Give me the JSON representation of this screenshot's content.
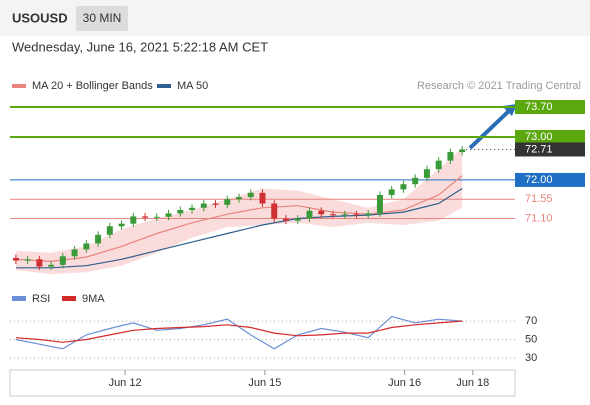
{
  "header": {
    "symbol": "USOUSD",
    "interval": "30 MIN",
    "timestamp": "Wednesday, June 16, 2021 5:22:18 AM CET"
  },
  "chart_data": [
    {
      "type": "candlestick",
      "source": "Research © 2021 Trading Central",
      "up_color": "#3a9a3a",
      "down_color": "#d03030",
      "x": [
        0,
        1,
        2,
        3,
        4,
        5,
        6,
        7,
        8,
        9,
        10,
        11,
        12,
        13,
        14,
        15,
        16,
        17,
        18,
        19,
        20,
        21,
        22,
        23,
        24,
        25,
        26,
        27,
        28,
        29,
        30,
        31,
        32,
        33,
        34,
        35,
        36,
        37,
        38
      ],
      "open": [
        70.18,
        70.12,
        70.15,
        69.98,
        70.02,
        70.22,
        70.38,
        70.52,
        70.72,
        70.92,
        70.98,
        71.15,
        71.12,
        71.14,
        71.22,
        71.3,
        71.35,
        71.45,
        71.42,
        71.55,
        71.6,
        71.7,
        71.45,
        71.1,
        71.05,
        71.1,
        71.28,
        71.2,
        71.18,
        71.2,
        71.18,
        71.22,
        71.65,
        71.78,
        71.9,
        72.05,
        72.25,
        72.45,
        72.65
      ],
      "high": [
        70.26,
        70.23,
        70.23,
        70.1,
        70.3,
        70.46,
        70.6,
        70.8,
        71.0,
        71.06,
        71.23,
        71.23,
        71.22,
        71.3,
        71.38,
        71.43,
        71.53,
        71.53,
        71.63,
        71.68,
        71.78,
        71.78,
        71.53,
        71.18,
        71.18,
        71.36,
        71.36,
        71.28,
        71.28,
        71.28,
        71.3,
        71.73,
        71.86,
        71.98,
        72.13,
        72.33,
        72.53,
        72.73,
        72.79
      ],
      "low": [
        70.04,
        70.04,
        69.9,
        69.9,
        69.94,
        70.14,
        70.3,
        70.44,
        70.64,
        70.84,
        70.9,
        71.04,
        71.04,
        71.06,
        71.14,
        71.22,
        71.27,
        71.34,
        71.34,
        71.47,
        71.52,
        71.37,
        71.02,
        70.97,
        70.97,
        71.02,
        71.12,
        71.1,
        71.1,
        71.1,
        71.1,
        71.14,
        71.57,
        71.7,
        71.82,
        71.97,
        72.17,
        72.37,
        72.57
      ],
      "close": [
        70.12,
        70.15,
        69.98,
        70.02,
        70.22,
        70.38,
        70.52,
        70.72,
        70.92,
        70.98,
        71.15,
        71.12,
        71.14,
        71.22,
        71.3,
        71.35,
        71.45,
        71.42,
        71.55,
        71.6,
        71.7,
        71.45,
        71.1,
        71.05,
        71.1,
        71.28,
        71.2,
        71.18,
        71.2,
        71.18,
        71.22,
        71.65,
        71.78,
        71.9,
        72.05,
        72.25,
        72.45,
        72.65,
        72.71
      ],
      "overlays": [
        {
          "name": "MA 20 + Bollinger Bands",
          "color": "#e8857d",
          "band_color": "#fadcdc",
          "x": [
            0,
            3,
            6,
            9,
            12,
            15,
            18,
            21,
            24,
            27,
            30,
            33,
            36,
            38
          ],
          "values": [
            70.15,
            70.1,
            70.2,
            70.45,
            70.75,
            71.0,
            71.2,
            71.35,
            71.4,
            71.25,
            71.2,
            71.3,
            71.65,
            72.1
          ],
          "upper": [
            70.35,
            70.3,
            70.45,
            70.85,
            71.1,
            71.3,
            71.55,
            71.8,
            71.75,
            71.55,
            71.35,
            71.55,
            72.25,
            72.75
          ],
          "lower": [
            69.9,
            69.8,
            69.85,
            70.0,
            70.3,
            70.65,
            70.9,
            70.95,
            71.0,
            70.9,
            71.0,
            70.95,
            71.05,
            71.35
          ]
        },
        {
          "name": "MA 50",
          "color": "#2e5f8e",
          "x": [
            0,
            3,
            6,
            9,
            12,
            15,
            18,
            21,
            24,
            27,
            30,
            33,
            36,
            38
          ],
          "values": [
            69.95,
            69.95,
            70.0,
            70.15,
            70.35,
            70.55,
            70.75,
            70.95,
            71.1,
            71.15,
            71.18,
            71.25,
            71.45,
            71.8
          ]
        }
      ],
      "levels": [
        {
          "value": 73.7,
          "label": "73.70",
          "color": "#5aa70e",
          "boxed": true
        },
        {
          "value": 73.0,
          "label": "73.00",
          "color": "#5aa70e",
          "boxed": true
        },
        {
          "value": 72.0,
          "label": "72.00",
          "color": "#1f6fc5",
          "boxed": true
        },
        {
          "value": 71.55,
          "label": "71.55",
          "color": "#e8857d",
          "boxed": false
        },
        {
          "value": 71.1,
          "label": "71.10",
          "color": "#e8857d",
          "boxed": false
        }
      ],
      "last": 72.71,
      "last_color": "#333333",
      "xlim": [
        -0.5,
        42.5
      ],
      "ylim": [
        69.55,
        73.98
      ],
      "xticks": [
        {
          "value": 9.3,
          "label": "Jun 12"
        },
        {
          "value": 21.2,
          "label": "Jun 15"
        },
        {
          "value": 33.1,
          "label": "Jun 16"
        },
        {
          "value": 38.9,
          "label": "Jun 18"
        }
      ]
    },
    {
      "type": "line",
      "series": [
        {
          "name": "RSI",
          "color": "#6b8fd6",
          "x": [
            0,
            2,
            4,
            6,
            8,
            10,
            12,
            14,
            16,
            18,
            20,
            22,
            24,
            26,
            28,
            30,
            32,
            34,
            36,
            38
          ],
          "values": [
            50,
            45,
            40,
            55,
            62,
            68,
            60,
            62,
            66,
            72,
            55,
            40,
            55,
            62,
            58,
            52,
            75,
            68,
            72,
            70
          ]
        },
        {
          "name": "9MA",
          "color": "#d42a2a",
          "x": [
            0,
            2,
            4,
            6,
            8,
            10,
            12,
            14,
            16,
            18,
            20,
            22,
            24,
            26,
            28,
            30,
            32,
            34,
            36,
            38
          ],
          "values": [
            52,
            50,
            47,
            50,
            55,
            60,
            62,
            63,
            64,
            66,
            63,
            57,
            54,
            55,
            57,
            57,
            63,
            66,
            68,
            70
          ]
        }
      ],
      "xlim": [
        -0.5,
        42.5
      ],
      "ylim": [
        17,
        82
      ],
      "yticks": [
        30,
        50,
        70
      ]
    }
  ]
}
